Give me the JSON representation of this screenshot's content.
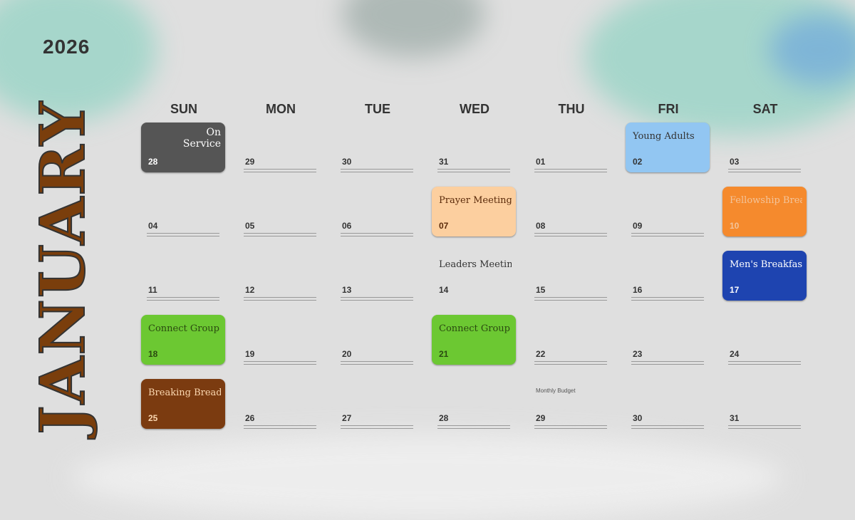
{
  "year": "2026",
  "month": "JANUARY",
  "weekdays": [
    "SUN",
    "MON",
    "TUE",
    "WED",
    "THU",
    "FRI",
    "SAT"
  ],
  "colors": {
    "month": "#7a3e0c",
    "gray": "#555555",
    "peach": "#fccf9f",
    "blue_light": "#92c6f2",
    "orange": "#f58a2d",
    "blue": "#1e44b0",
    "green": "#6cc832",
    "brown": "#7b3b10"
  },
  "days": [
    {
      "num": "28",
      "event": "On Service",
      "color": "#555555",
      "text": "#ffffff"
    },
    {
      "num": "29"
    },
    {
      "num": "30"
    },
    {
      "num": "31"
    },
    {
      "num": "01"
    },
    {
      "num": "02",
      "event": "Young Adults",
      "color": "#92c6f2",
      "text": "#333333"
    },
    {
      "num": "03"
    },
    {
      "num": "04"
    },
    {
      "num": "05"
    },
    {
      "num": "06"
    },
    {
      "num": "07",
      "event": "Prayer Meeting",
      "color": "#fccf9f",
      "text": "#5a2a0a"
    },
    {
      "num": "08"
    },
    {
      "num": "09"
    },
    {
      "num": "10",
      "event": "Fellowship Breakfast",
      "color": "#f58a2d",
      "text": "#f3c49a"
    },
    {
      "num": "11"
    },
    {
      "num": "12"
    },
    {
      "num": "13"
    },
    {
      "num": "14",
      "event": "Leaders Meeting",
      "color": "transparent",
      "text": "#333333"
    },
    {
      "num": "15"
    },
    {
      "num": "16"
    },
    {
      "num": "17",
      "event": "Men's Breakfast",
      "color": "#1e44b0",
      "text": "#ffffff"
    },
    {
      "num": "18",
      "event": "Connect Group",
      "color": "#6cc832",
      "text": "#2a4a10"
    },
    {
      "num": "19"
    },
    {
      "num": "20"
    },
    {
      "num": "21",
      "event": "Connect Group",
      "color": "#6cc832",
      "text": "#2a4a10"
    },
    {
      "num": "22"
    },
    {
      "num": "23"
    },
    {
      "num": "24"
    },
    {
      "num": "25",
      "event": "Breaking Bread",
      "color": "#7b3b10",
      "text": "#fbd7b0"
    },
    {
      "num": "26"
    },
    {
      "num": "27"
    },
    {
      "num": "28"
    },
    {
      "num": "29",
      "note": "Monthly Budget"
    },
    {
      "num": "30"
    },
    {
      "num": "31"
    }
  ]
}
